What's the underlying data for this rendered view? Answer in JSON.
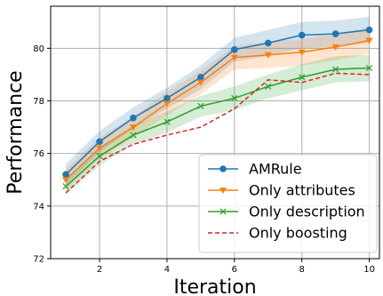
{
  "chart_data": {
    "type": "line",
    "xlabel": "Iteration",
    "ylabel": "Performance",
    "xlim": [
      0.55,
      10.3
    ],
    "ylim": [
      72,
      81.6
    ],
    "xticks": [
      2,
      4,
      6,
      8,
      10
    ],
    "yticks": [
      72,
      74,
      76,
      78,
      80
    ],
    "grid": true,
    "legend_position": "lower-right",
    "x": [
      1,
      2,
      3,
      4,
      5,
      6,
      7,
      8,
      9,
      10
    ],
    "series": [
      {
        "name": "AMRule",
        "color": "#1f77b4",
        "marker": "circle",
        "linestyle": "solid",
        "values": [
          75.2,
          76.45,
          77.35,
          78.1,
          78.9,
          79.95,
          80.2,
          80.5,
          80.55,
          80.7
        ],
        "band_halfwidth": [
          0.4,
          0.4,
          0.4,
          0.4,
          0.45,
          0.45,
          0.5,
          0.5,
          0.5,
          0.5
        ]
      },
      {
        "name": "Only attributes",
        "color": "#ff7f0e",
        "marker": "triangle-down",
        "linestyle": "solid",
        "values": [
          75.0,
          76.2,
          77.0,
          77.9,
          78.7,
          79.65,
          79.75,
          79.85,
          80.05,
          80.3
        ],
        "band_halfwidth": [
          0.4,
          0.4,
          0.4,
          0.45,
          0.45,
          0.45,
          0.5,
          0.5,
          0.5,
          0.5
        ]
      },
      {
        "name": "Only description",
        "color": "#2ca02c",
        "marker": "x",
        "linestyle": "solid",
        "values": [
          74.75,
          75.9,
          76.7,
          77.2,
          77.8,
          78.1,
          78.55,
          78.9,
          79.2,
          79.25
        ],
        "band_halfwidth": [
          0.3,
          0.35,
          0.35,
          0.4,
          0.4,
          0.45,
          0.45,
          0.5,
          0.5,
          0.5
        ]
      },
      {
        "name": "Only boosting",
        "color": "#d62728",
        "marker": "none",
        "linestyle": "dashed",
        "values": [
          74.5,
          75.7,
          76.35,
          76.7,
          77.0,
          77.7,
          78.8,
          78.7,
          79.05,
          79.0
        ],
        "band_halfwidth": [
          0,
          0,
          0,
          0,
          0,
          0,
          0,
          0,
          0,
          0
        ]
      }
    ]
  }
}
